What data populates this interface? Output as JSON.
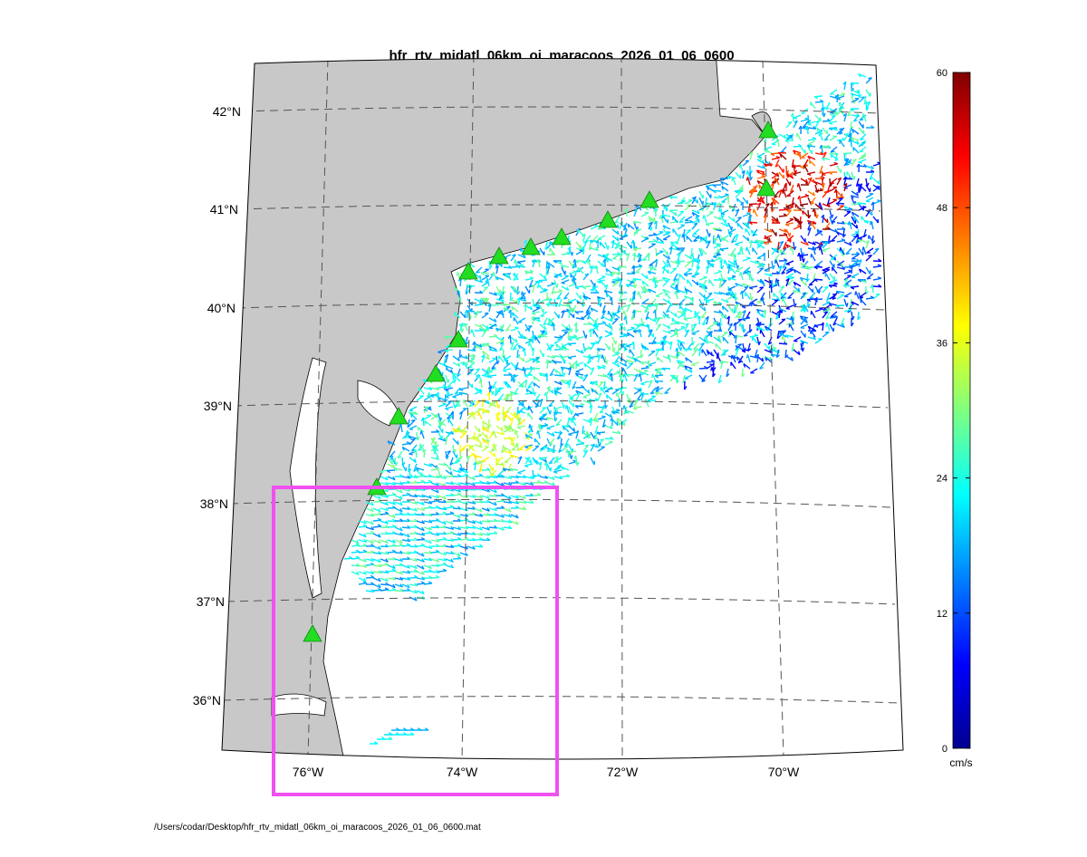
{
  "title": "hfr_rtv_midatl_06km_oi_maracoos_2026_01_06_0600",
  "map": {
    "lat_labels": [
      "42°N",
      "41°N",
      "40°N",
      "39°N",
      "38°N",
      "37°N",
      "36°N"
    ],
    "lon_labels": [
      "76°W",
      "74°W",
      "72°W",
      "70°W"
    ]
  },
  "colorbar": {
    "lim": [
      0,
      60
    ],
    "ticks": [
      0,
      12,
      24,
      36,
      48,
      60
    ],
    "unit": "cm/s"
  },
  "footer": "/Users/codar/Desktop/hfr_rtv_midatl_06km_oi_maracoos_2026_01_06_0600.mat"
}
